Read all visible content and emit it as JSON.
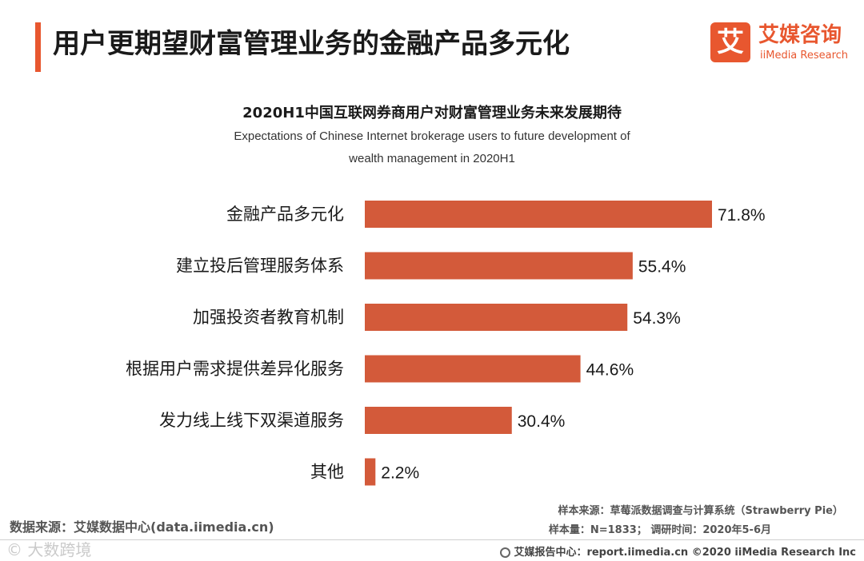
{
  "header": {
    "title": "用户更期望财富管理业务的金融产品多元化",
    "logo_glyph": "艾",
    "logo_cn": "艾媒咨询",
    "logo_en": "iiMedia Research",
    "accent_color": "#e8572f"
  },
  "chart_data": {
    "type": "bar",
    "orientation": "horizontal",
    "title": "2020H1中国互联网券商用户对财富管理业务未来发展期待",
    "subtitle_line1": "Expectations of Chinese Internet brokerage users to future development of",
    "subtitle_line2": "wealth management in 2020H1",
    "categories": [
      "金融产品多元化",
      "建立投后管理服务体系",
      "加强投资者教育机制",
      "根据用户需求提供差异化服务",
      "发力线上线下双渠道服务",
      "其他"
    ],
    "values": [
      71.8,
      55.4,
      54.3,
      44.6,
      30.4,
      2.2
    ],
    "value_labels": [
      "71.8%",
      "55.4%",
      "54.3%",
      "44.6%",
      "30.4%",
      "2.2%"
    ],
    "unit": "%",
    "xlim": [
      0,
      71.8
    ],
    "bar_color": "#d35a3a",
    "grid": false,
    "legend": "none"
  },
  "footer": {
    "data_source": "数据来源：艾媒数据中心(data.iimedia.cn)",
    "sample_source": "样本来源：草莓派数据调查与计算系统（Strawberry Pie）",
    "sample_info": "样本量：N=1833；  调研时间：2020年5-6月",
    "report_center": "艾媒报告中心：report.iimedia.cn   ©2020  iiMedia Research  Inc",
    "watermark": "© 大数跨境"
  }
}
